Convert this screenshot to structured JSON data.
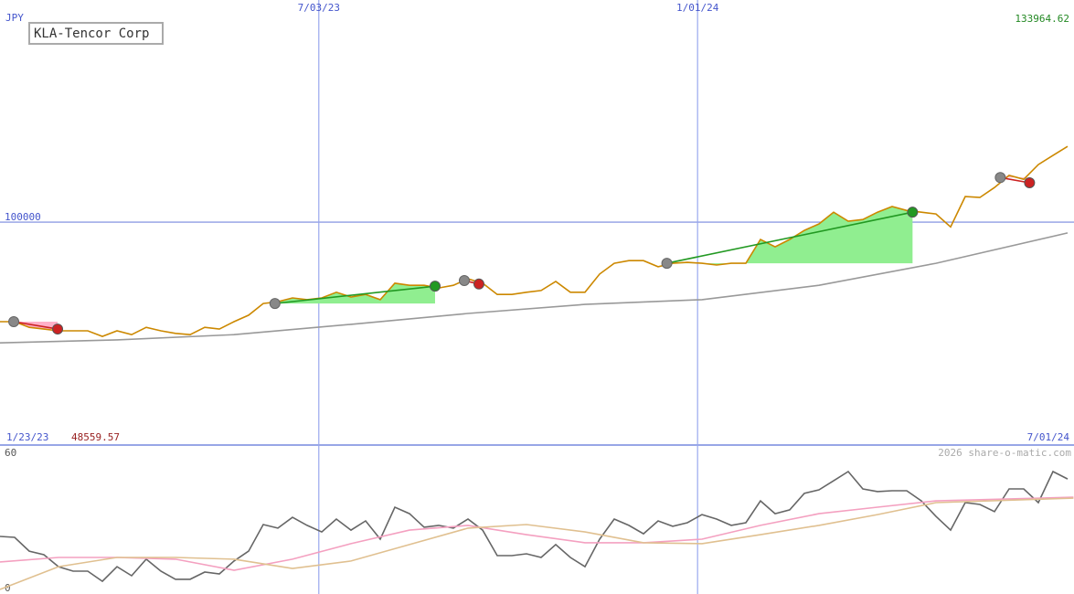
{
  "chart_data": [
    {
      "type": "line",
      "title": "KLA-Tencor Corp",
      "currency": "JPY",
      "max_label": "133964.62",
      "min_label": "48559.57",
      "start_label": "1/23/23",
      "end_label": "7/01/24",
      "x": [
        0,
        1,
        2,
        3,
        4,
        5,
        6,
        7,
        8,
        9,
        10,
        11,
        12,
        13,
        14,
        15,
        16,
        17,
        18,
        19,
        20,
        21,
        22,
        23,
        24,
        25,
        26,
        27,
        28,
        29,
        30,
        31,
        32,
        33,
        34,
        35,
        36,
        37,
        38,
        39,
        40,
        41,
        42,
        43,
        44,
        45,
        46,
        47,
        48,
        49,
        50,
        51,
        52,
        53,
        54,
        55,
        56,
        57,
        58,
        59,
        60,
        61,
        62,
        63,
        64,
        65,
        66,
        67,
        68,
        69,
        70,
        71,
        72,
        73
      ],
      "xlim": [
        0,
        73.44
      ],
      "xticks": [
        {
          "value": 21.8,
          "label": "7/03/23"
        },
        {
          "value": 47.7,
          "label": "1/01/24"
        }
      ],
      "ylim": [
        48500,
        147100
      ],
      "yticks": [
        100000
      ],
      "series": [
        {
          "color": "#cc8800",
          "values": [
            77000,
            77000,
            75700,
            75300,
            74900,
            74900,
            74900,
            73600,
            74900,
            74000,
            75700,
            74900,
            74300,
            74000,
            75700,
            75300,
            77000,
            78500,
            81200,
            81600,
            82500,
            82100,
            82500,
            83800,
            82700,
            83300,
            82100,
            85900,
            85400,
            85400,
            84800,
            85400,
            86900,
            85900,
            83300,
            83300,
            83800,
            84200,
            86300,
            83800,
            83800,
            88000,
            90500,
            91100,
            91100,
            89700,
            90500,
            90700,
            90500,
            90100,
            90500,
            90500,
            96000,
            94300,
            96000,
            98100,
            99600,
            102300,
            100200,
            100600,
            102300,
            103600,
            102700,
            102300,
            101900,
            98900,
            105900,
            105700,
            108000,
            110800,
            109900,
            113300,
            115400,
            117500
          ]
        },
        {
          "color": "#999999",
          "x": [
            0,
            8,
            16,
            24,
            32,
            40,
            48,
            56,
            64,
            73
          ],
          "values": [
            72100,
            72800,
            74000,
            76400,
            78900,
            81000,
            82100,
            85400,
            90500,
            97500
          ]
        }
      ],
      "trades": [
        {
          "x0": 0.94,
          "y0": 77000,
          "x1": 3.94,
          "y1": 75300,
          "color": "#cc2222",
          "fill": "#ffb0c8"
        },
        {
          "x0": 18.8,
          "y0": 81200,
          "x1": 29.75,
          "y1": 85200,
          "color": "#229922",
          "fill": "#90ee90"
        },
        {
          "x0": 31.75,
          "y0": 86500,
          "x1": 32.75,
          "y1": 85700,
          "color": "#cc2222",
          "fill": "#ffb0c8"
        },
        {
          "x0": 45.6,
          "y0": 90500,
          "x1": 62.4,
          "y1": 102300,
          "color": "#229922",
          "fill": "#90ee90"
        },
        {
          "x0": 68.4,
          "y0": 110300,
          "x1": 70.4,
          "y1": 109100,
          "color": "#cc2222",
          "fill": "#ffb0c8"
        }
      ]
    },
    {
      "type": "line",
      "credit": "2026 share-o-matic.com",
      "x": [
        0,
        1,
        2,
        3,
        4,
        5,
        6,
        7,
        8,
        9,
        10,
        11,
        12,
        13,
        14,
        15,
        16,
        17,
        18,
        19,
        20,
        21,
        22,
        23,
        24,
        25,
        26,
        27,
        28,
        29,
        30,
        31,
        32,
        33,
        34,
        35,
        36,
        37,
        38,
        39,
        40,
        41,
        42,
        43,
        44,
        45,
        46,
        47,
        48,
        49,
        50,
        51,
        52,
        53,
        54,
        55,
        56,
        57,
        58,
        59,
        60,
        61,
        62,
        63,
        64,
        65,
        66,
        67,
        68,
        69,
        70,
        71,
        72,
        73
      ],
      "xlim": [
        0,
        73.44
      ],
      "ylim": [
        0,
        60
      ],
      "yticks": [
        60,
        0
      ],
      "series": [
        {
          "color": "#666666",
          "values": [
            23.5,
            23.1,
            17.0,
            15.4,
            10.1,
            8.1,
            8.1,
            3.6,
            10.1,
            6.1,
            13.4,
            8.1,
            4.5,
            4.5,
            7.7,
            6.9,
            12.6,
            17.0,
            28.8,
            27.2,
            32.0,
            28.4,
            25.5,
            31.2,
            26.3,
            30.4,
            22.3,
            36.5,
            33.6,
            27.6,
            28.4,
            27.2,
            31.2,
            26.3,
            15.0,
            15.0,
            15.8,
            14.2,
            19.9,
            14.2,
            10.1,
            22.3,
            31.2,
            28.4,
            24.7,
            30.4,
            28.0,
            29.6,
            33.2,
            31.2,
            28.4,
            29.6,
            39.3,
            33.6,
            35.3,
            42.6,
            44.2,
            48.2,
            52.3,
            44.6,
            43.4,
            43.8,
            43.8,
            39.3,
            32.4,
            26.3,
            38.5,
            37.7,
            34.5,
            44.6,
            44.6,
            38.5,
            52.3,
            49.0
          ]
        },
        {
          "color": "#f4a0c0",
          "x": [
            0,
            4,
            8,
            12,
            16,
            20,
            24,
            28,
            32,
            36,
            40,
            44,
            48,
            52,
            56,
            60,
            64,
            73.4
          ],
          "values": [
            12.2,
            14.2,
            14.2,
            13.4,
            8.5,
            13.4,
            20.3,
            26.3,
            28.4,
            24.3,
            20.7,
            20.7,
            22.3,
            28.4,
            33.6,
            36.5,
            39.3,
            40.9
          ]
        },
        {
          "color": "#e0c090",
          "x": [
            0,
            4,
            8,
            12,
            16,
            20,
            24,
            28,
            32,
            36,
            40,
            44,
            48,
            52,
            56,
            60,
            64,
            73.4
          ],
          "values": [
            0,
            10.1,
            14.2,
            14.2,
            13.4,
            9.3,
            12.6,
            19.9,
            27.2,
            28.8,
            25.5,
            20.7,
            20.3,
            24.3,
            28.4,
            33.2,
            38.5,
            40.5
          ]
        }
      ]
    }
  ]
}
